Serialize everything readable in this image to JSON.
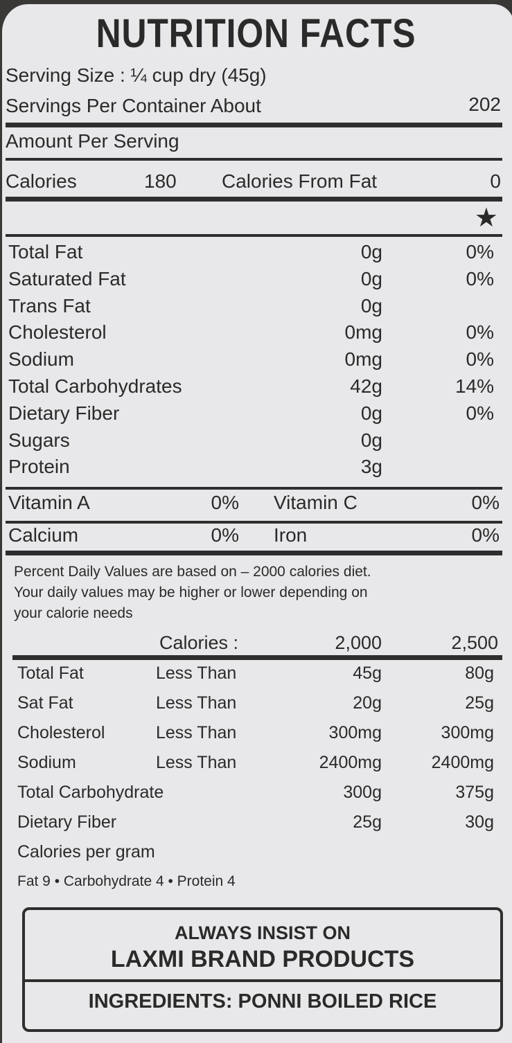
{
  "title": "NUTRITION FACTS",
  "serving_size": "Serving Size : ¼ cup dry (45g)",
  "servings_per_container": {
    "label": "Servings Per Container About",
    "value": "202"
  },
  "amount_per_serving": "Amount Per Serving",
  "calories": {
    "label": "Calories",
    "value": "180",
    "fat_label": "Calories From Fat",
    "fat_value": "0"
  },
  "star_icon": "star-icon",
  "nutrients": [
    {
      "name": "Total Fat",
      "amount": "0g",
      "dv": "0%"
    },
    {
      "name": "Saturated Fat",
      "amount": "0g",
      "dv": "0%"
    },
    {
      "name": "Trans Fat",
      "amount": "0g",
      "dv": ""
    },
    {
      "name": "Cholesterol",
      "amount": "0mg",
      "dv": "0%"
    },
    {
      "name": "Sodium",
      "amount": "0mg",
      "dv": "0%"
    },
    {
      "name": "Total Carbohydrates",
      "amount": "42g",
      "dv": "14%"
    },
    {
      "name": "Dietary Fiber",
      "amount": "0g",
      "dv": "0%"
    },
    {
      "name": "Sugars",
      "amount": "0g",
      "dv": ""
    },
    {
      "name": "Protein",
      "amount": "3g",
      "dv": ""
    }
  ],
  "vitamins": [
    {
      "name1": "Vitamin A",
      "value1": "0%",
      "name2": "Vitamin C",
      "value2": "0%"
    },
    {
      "name1": "Calcium",
      "value1": "0%",
      "name2": "Iron",
      "value2": "0%"
    }
  ],
  "footnote": [
    "Percent Daily Values are based on – 2000 calories diet.",
    "Your daily values may be higher or lower depending on",
    "your calorie needs"
  ],
  "dv_table": {
    "header": {
      "label": "Calories :",
      "c1": "2,000",
      "c2": "2,500"
    },
    "rows": [
      {
        "name": "Total Fat",
        "qual": "Less Than",
        "c1": "45g",
        "c2": "80g"
      },
      {
        "name": "Sat Fat",
        "qual": "Less Than",
        "c1": "20g",
        "c2": "25g"
      },
      {
        "name": "Cholesterol",
        "qual": "Less Than",
        "c1": "300mg",
        "c2": "300mg"
      },
      {
        "name": "Sodium",
        "qual": "Less Than",
        "c1": "2400mg",
        "c2": "2400mg"
      },
      {
        "name": "Total Carbohydrate",
        "qual": "",
        "c1": "300g",
        "c2": "375g"
      },
      {
        "name": "Dietary Fiber",
        "qual": "",
        "c1": "25g",
        "c2": "30g"
      }
    ],
    "calories_per_gram": "Calories per gram",
    "per_gram_values": "Fat 9 • Carbohydrate 4 • Protein 4"
  },
  "brand_box": {
    "line1": "ALWAYS INSIST ON",
    "line2": "LAXMI BRAND PRODUCTS",
    "ingredients": "INGREDIENTS: PONNI BOILED RICE"
  }
}
